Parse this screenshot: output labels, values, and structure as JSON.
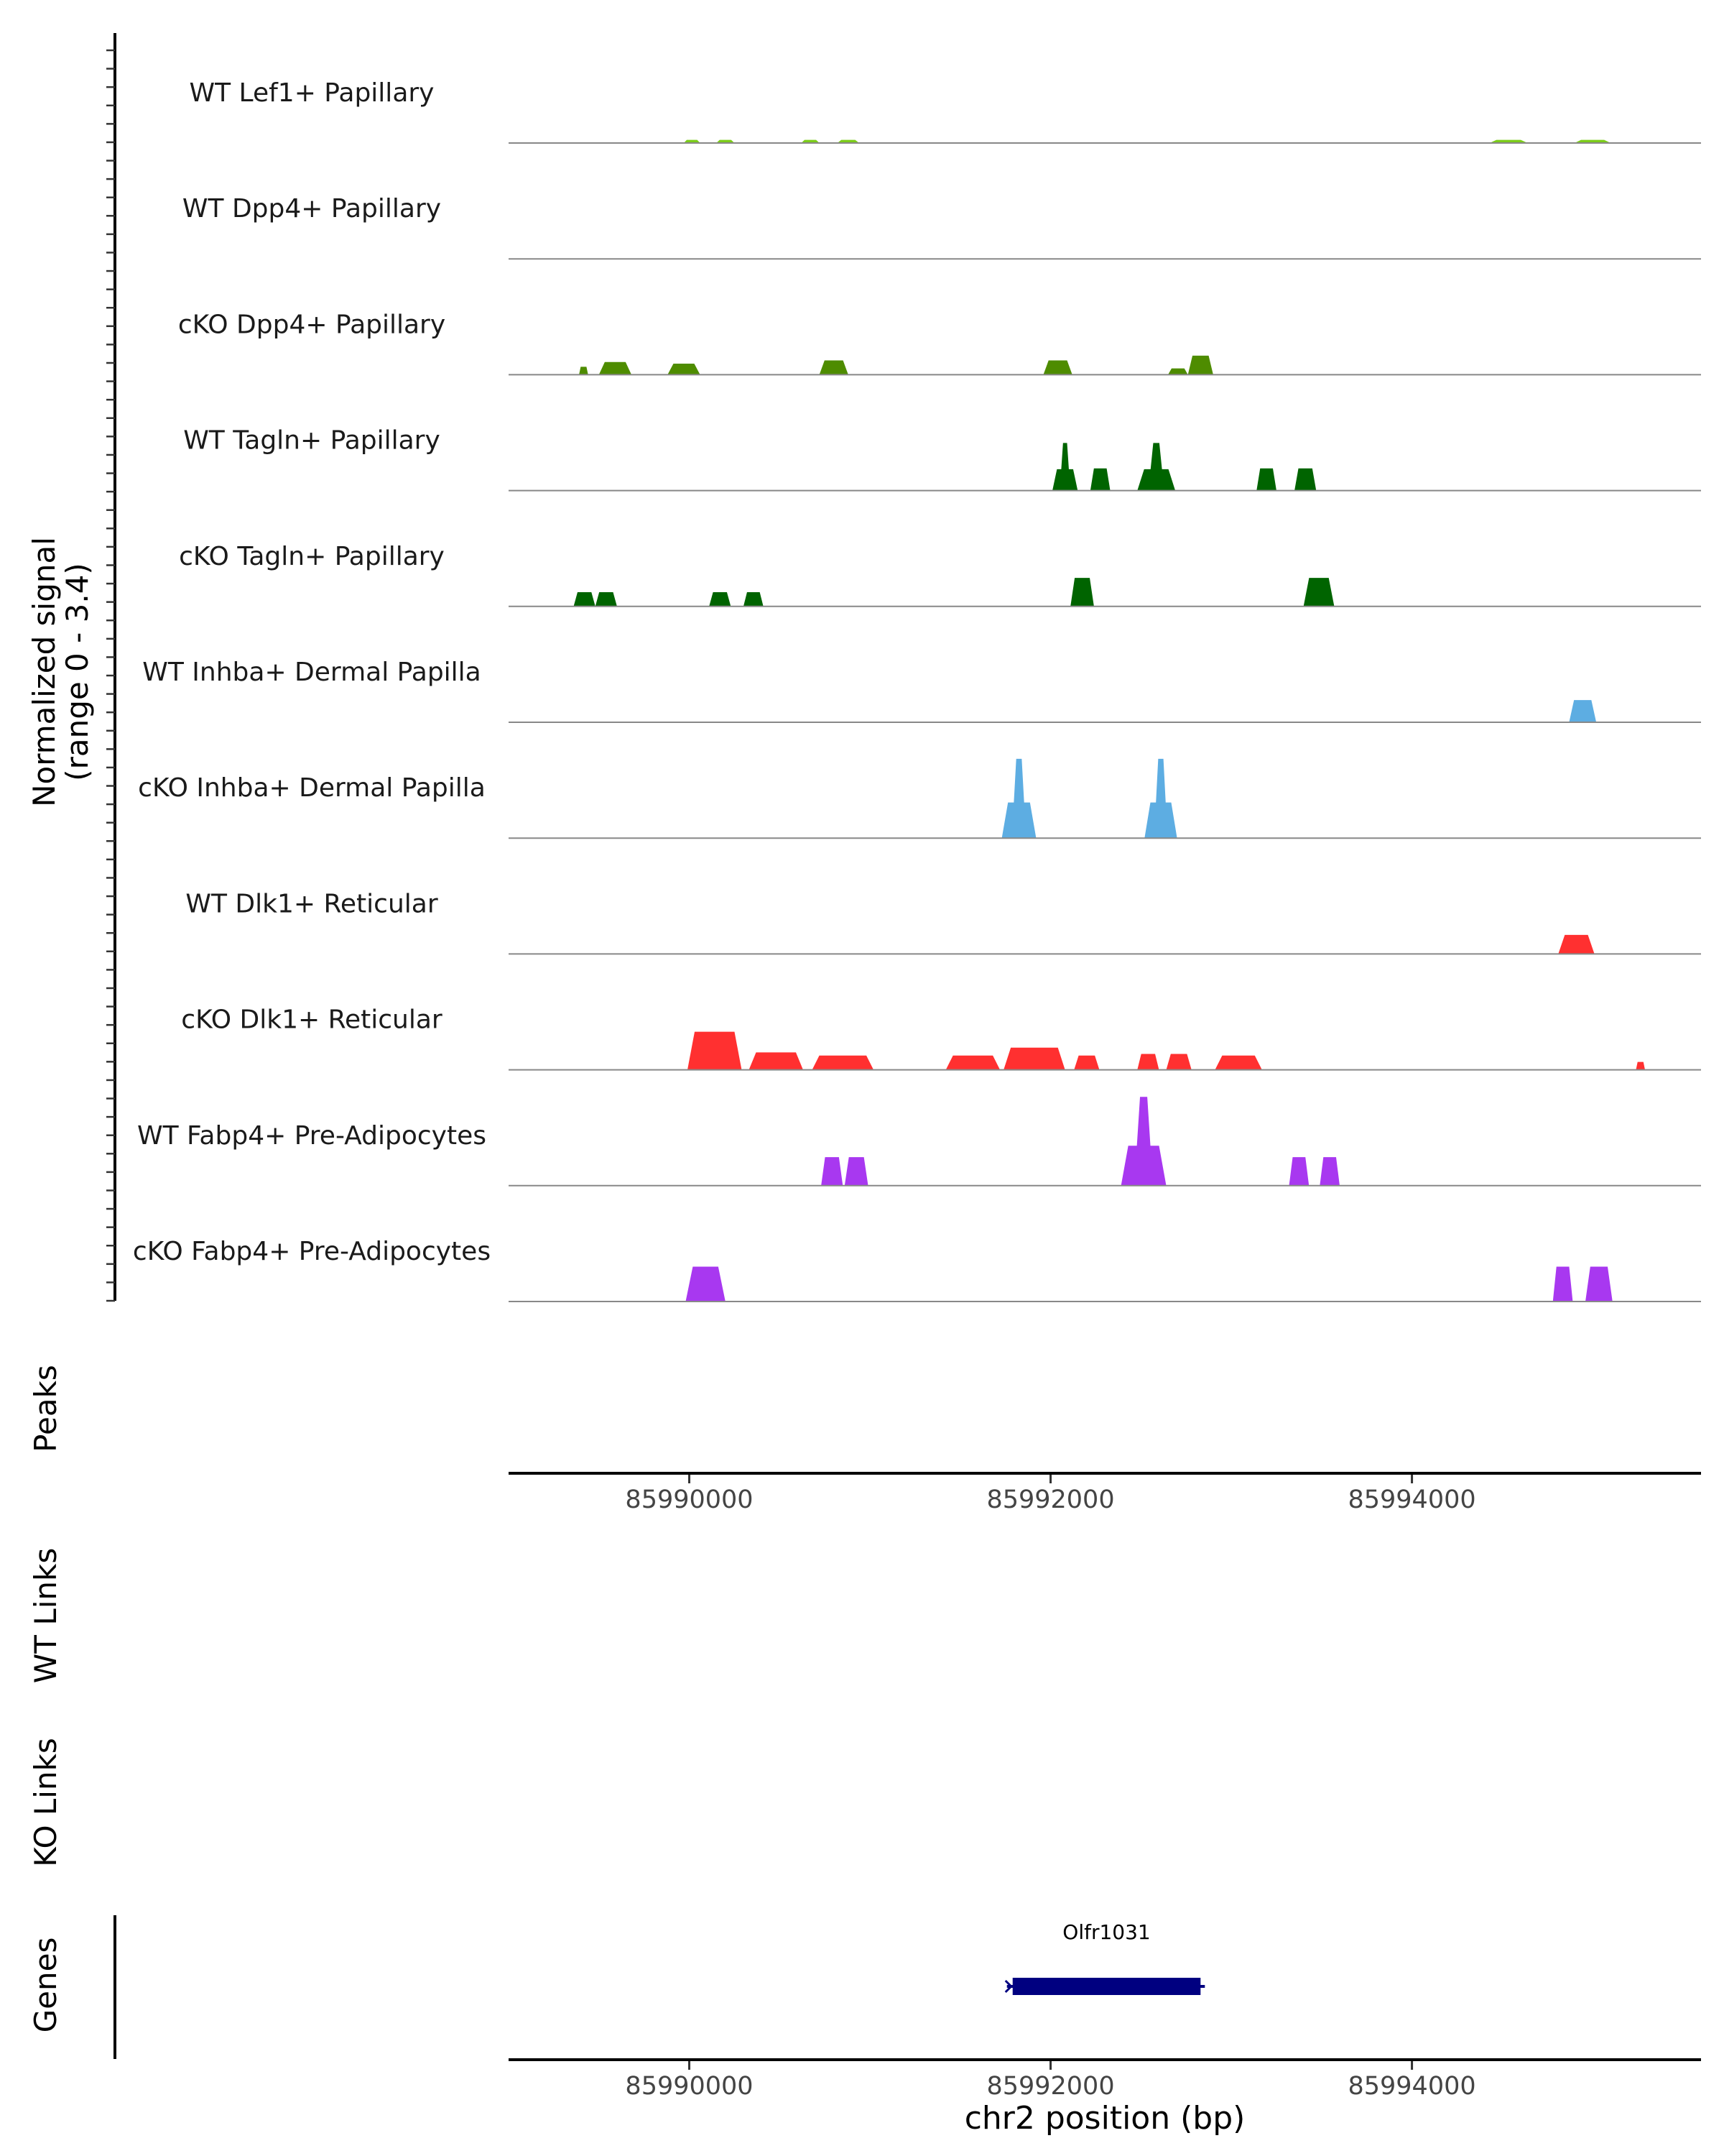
{
  "chart_data": {
    "type": "area",
    "chromosome": "chr2",
    "x_range": [
      85989000,
      85995600
    ],
    "y_axis_label_line1": "Normalized signal",
    "y_axis_label_line2": "(range 0 - 3.4)",
    "y_range": [
      0,
      3.4
    ],
    "tracks": [
      {
        "name": "WT Lef1+ Papillary",
        "color": "#7CCD1A",
        "peaks": [
          {
            "start": 85989970,
            "end": 85990060,
            "value": 0.1
          },
          {
            "start": 85990150,
            "end": 85990250,
            "value": 0.1
          },
          {
            "start": 85990620,
            "end": 85990720,
            "value": 0.1
          },
          {
            "start": 85990820,
            "end": 85990940,
            "value": 0.1
          },
          {
            "start": 85994430,
            "end": 85994640,
            "value": 0.1
          },
          {
            "start": 85994900,
            "end": 85995100,
            "value": 0.1
          }
        ]
      },
      {
        "name": "WT Dpp4+ Papillary",
        "color": "#4E8C00",
        "peaks": []
      },
      {
        "name": "cKO Dpp4+ Papillary",
        "color": "#4E8C00",
        "peaks": [
          {
            "start": 85989390,
            "end": 85989440,
            "value": 0.25
          },
          {
            "start": 85989500,
            "end": 85989680,
            "value": 0.4
          },
          {
            "start": 85989880,
            "end": 85990060,
            "value": 0.35
          },
          {
            "start": 85990720,
            "end": 85990880,
            "value": 0.45
          },
          {
            "start": 85991960,
            "end": 85992120,
            "value": 0.45
          },
          {
            "start": 85992650,
            "end": 85992760,
            "value": 0.2
          },
          {
            "start": 85992760,
            "end": 85992900,
            "value": 0.6
          }
        ]
      },
      {
        "name": "WT Tagln+ Papillary",
        "color": "#006400",
        "peaks": [
          {
            "start": 85992010,
            "end": 85992150,
            "value": 1.5
          },
          {
            "start": 85992220,
            "end": 85992330,
            "value": 0.7
          },
          {
            "start": 85992480,
            "end": 85992690,
            "value": 1.5
          },
          {
            "start": 85993140,
            "end": 85993250,
            "value": 0.7
          },
          {
            "start": 85993350,
            "end": 85993470,
            "value": 0.7
          }
        ]
      },
      {
        "name": "cKO Tagln+ Papillary",
        "color": "#006400",
        "peaks": [
          {
            "start": 85989360,
            "end": 85989480,
            "value": 0.45
          },
          {
            "start": 85989480,
            "end": 85989600,
            "value": 0.45
          },
          {
            "start": 85990110,
            "end": 85990230,
            "value": 0.45
          },
          {
            "start": 85990300,
            "end": 85990410,
            "value": 0.45
          },
          {
            "start": 85992110,
            "end": 85992240,
            "value": 0.9
          },
          {
            "start": 85993400,
            "end": 85993570,
            "value": 0.9
          }
        ]
      },
      {
        "name": "WT Inhba+ Dermal Papilla",
        "color": "#5DADE2",
        "peaks": [
          {
            "start": 85994870,
            "end": 85995020,
            "value": 0.7
          }
        ]
      },
      {
        "name": "cKO Inhba+ Dermal Papilla",
        "color": "#5DADE2",
        "peaks": [
          {
            "start": 85991730,
            "end": 85991920,
            "value": 2.5
          },
          {
            "start": 85992520,
            "end": 85992700,
            "value": 2.5
          }
        ]
      },
      {
        "name": "WT Dlk1+ Reticular",
        "color": "#FF3030",
        "peaks": [
          {
            "start": 85994810,
            "end": 85995010,
            "value": 0.6
          }
        ]
      },
      {
        "name": "cKO Dlk1+ Reticular",
        "color": "#FF3030",
        "peaks": [
          {
            "start": 85989990,
            "end": 85990290,
            "value": 1.2
          },
          {
            "start": 85990330,
            "end": 85990630,
            "value": 0.55
          },
          {
            "start": 85990680,
            "end": 85991020,
            "value": 0.45
          },
          {
            "start": 85991420,
            "end": 85991720,
            "value": 0.45
          },
          {
            "start": 85991740,
            "end": 85992080,
            "value": 0.7
          },
          {
            "start": 85992130,
            "end": 85992270,
            "value": 0.45
          },
          {
            "start": 85992480,
            "end": 85992600,
            "value": 0.5
          },
          {
            "start": 85992640,
            "end": 85992780,
            "value": 0.5
          },
          {
            "start": 85992910,
            "end": 85993170,
            "value": 0.45
          },
          {
            "start": 85995240,
            "end": 85995290,
            "value": 0.25
          }
        ]
      },
      {
        "name": "WT Fabp4+ Pre-Adipocytes",
        "color": "#A838F0",
        "peaks": [
          {
            "start": 85990730,
            "end": 85990850,
            "value": 0.9
          },
          {
            "start": 85990860,
            "end": 85990990,
            "value": 0.9
          },
          {
            "start": 85992390,
            "end": 85992640,
            "value": 2.8
          },
          {
            "start": 85993320,
            "end": 85993430,
            "value": 0.9
          },
          {
            "start": 85993490,
            "end": 85993600,
            "value": 0.9
          }
        ]
      },
      {
        "name": "cKO Fabp4+ Pre-Adipocytes",
        "color": "#A838F0",
        "peaks": [
          {
            "start": 85989980,
            "end": 85990200,
            "value": 1.1
          },
          {
            "start": 85994780,
            "end": 85994890,
            "value": 1.1
          },
          {
            "start": 85994960,
            "end": 85995110,
            "value": 1.1
          }
        ]
      }
    ],
    "peaks_label": "Peaks",
    "wt_links_label": "WT Links",
    "ko_links_label": "KO Links",
    "genes_label": "Genes",
    "x_ticks": [
      85990000,
      85992000,
      85994000
    ],
    "x_tick_labels": [
      "85990000",
      "85992000",
      "85994000"
    ],
    "xlabel": "chr2 position (bp)",
    "gene": {
      "name": "Olfr1031",
      "start": 85991790,
      "end": 85992830,
      "color": "#000080"
    }
  }
}
